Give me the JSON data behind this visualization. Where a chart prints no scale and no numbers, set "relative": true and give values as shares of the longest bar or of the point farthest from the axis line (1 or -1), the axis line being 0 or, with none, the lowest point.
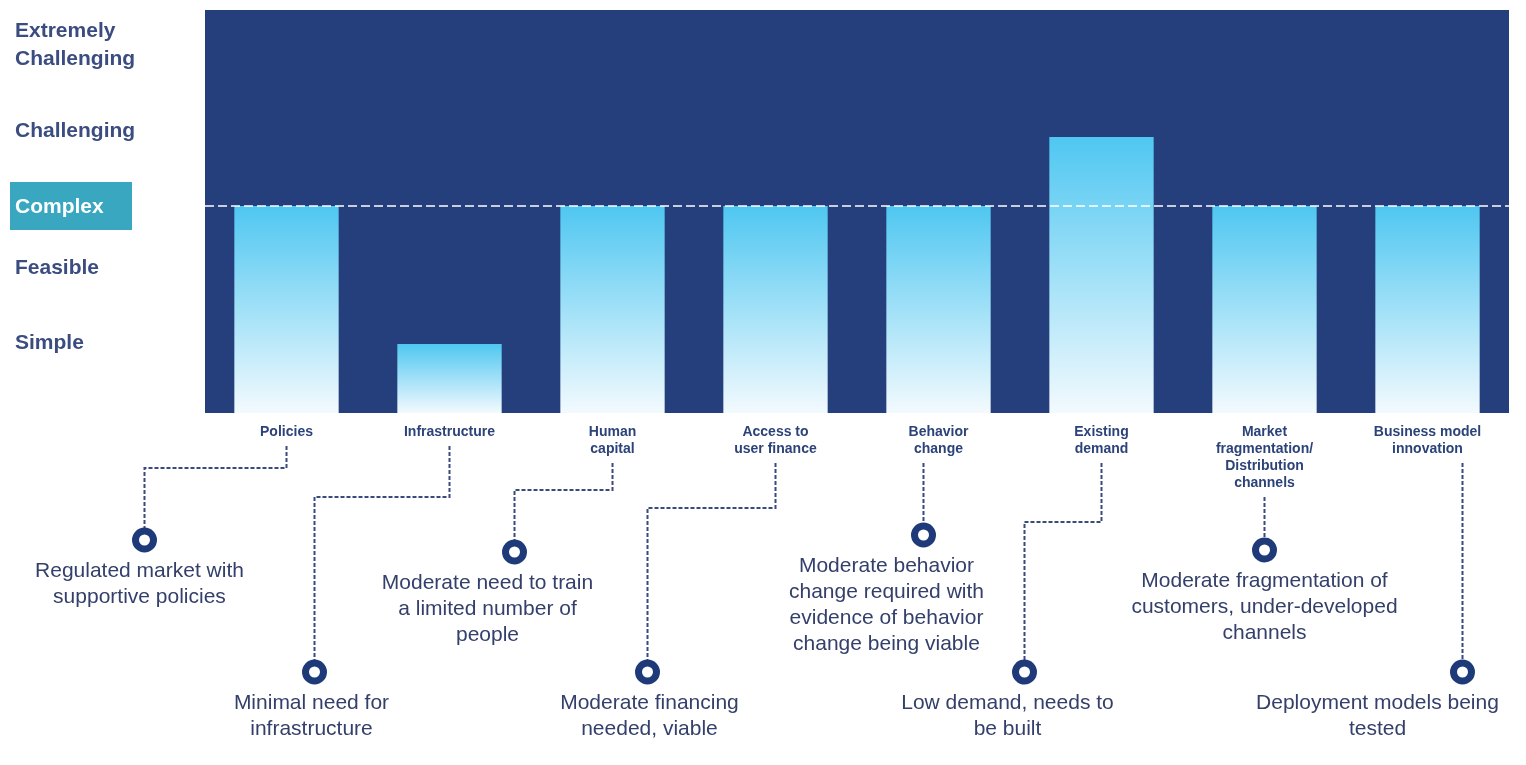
{
  "chart_data": {
    "type": "bar",
    "relative": true,
    "categories": [
      "Policies",
      "Infrastructure",
      "Human capital",
      "Access to user finance",
      "Behavior change",
      "Existing demand",
      "Market fragmentation/ Distribution channels",
      "Business model innovation"
    ],
    "values": [
      0.75,
      0.25,
      0.75,
      0.75,
      0.75,
      1,
      0.75,
      0.75
    ],
    "color": "#4fc7f1",
    "ref_lines": [
      {
        "axis": "y",
        "value": 0.75,
        "label": "Complex",
        "color": "#ffffff",
        "line_style": "dashed"
      }
    ],
    "annotations": [
      "Extremely Challenging",
      "Challenging",
      "Feasible",
      "Simple",
      "Regulated market with supportive policies",
      "Minimal need for infrastructure",
      "Moderate need to train a limited number of people",
      "Moderate financing needed, viable",
      "Moderate behavior change required with evidence of behavior change being viable",
      "Low demand, needs to be built",
      "Moderate fragmentation of customers, under-developed channels",
      "Deployment models being tested"
    ]
  }
}
